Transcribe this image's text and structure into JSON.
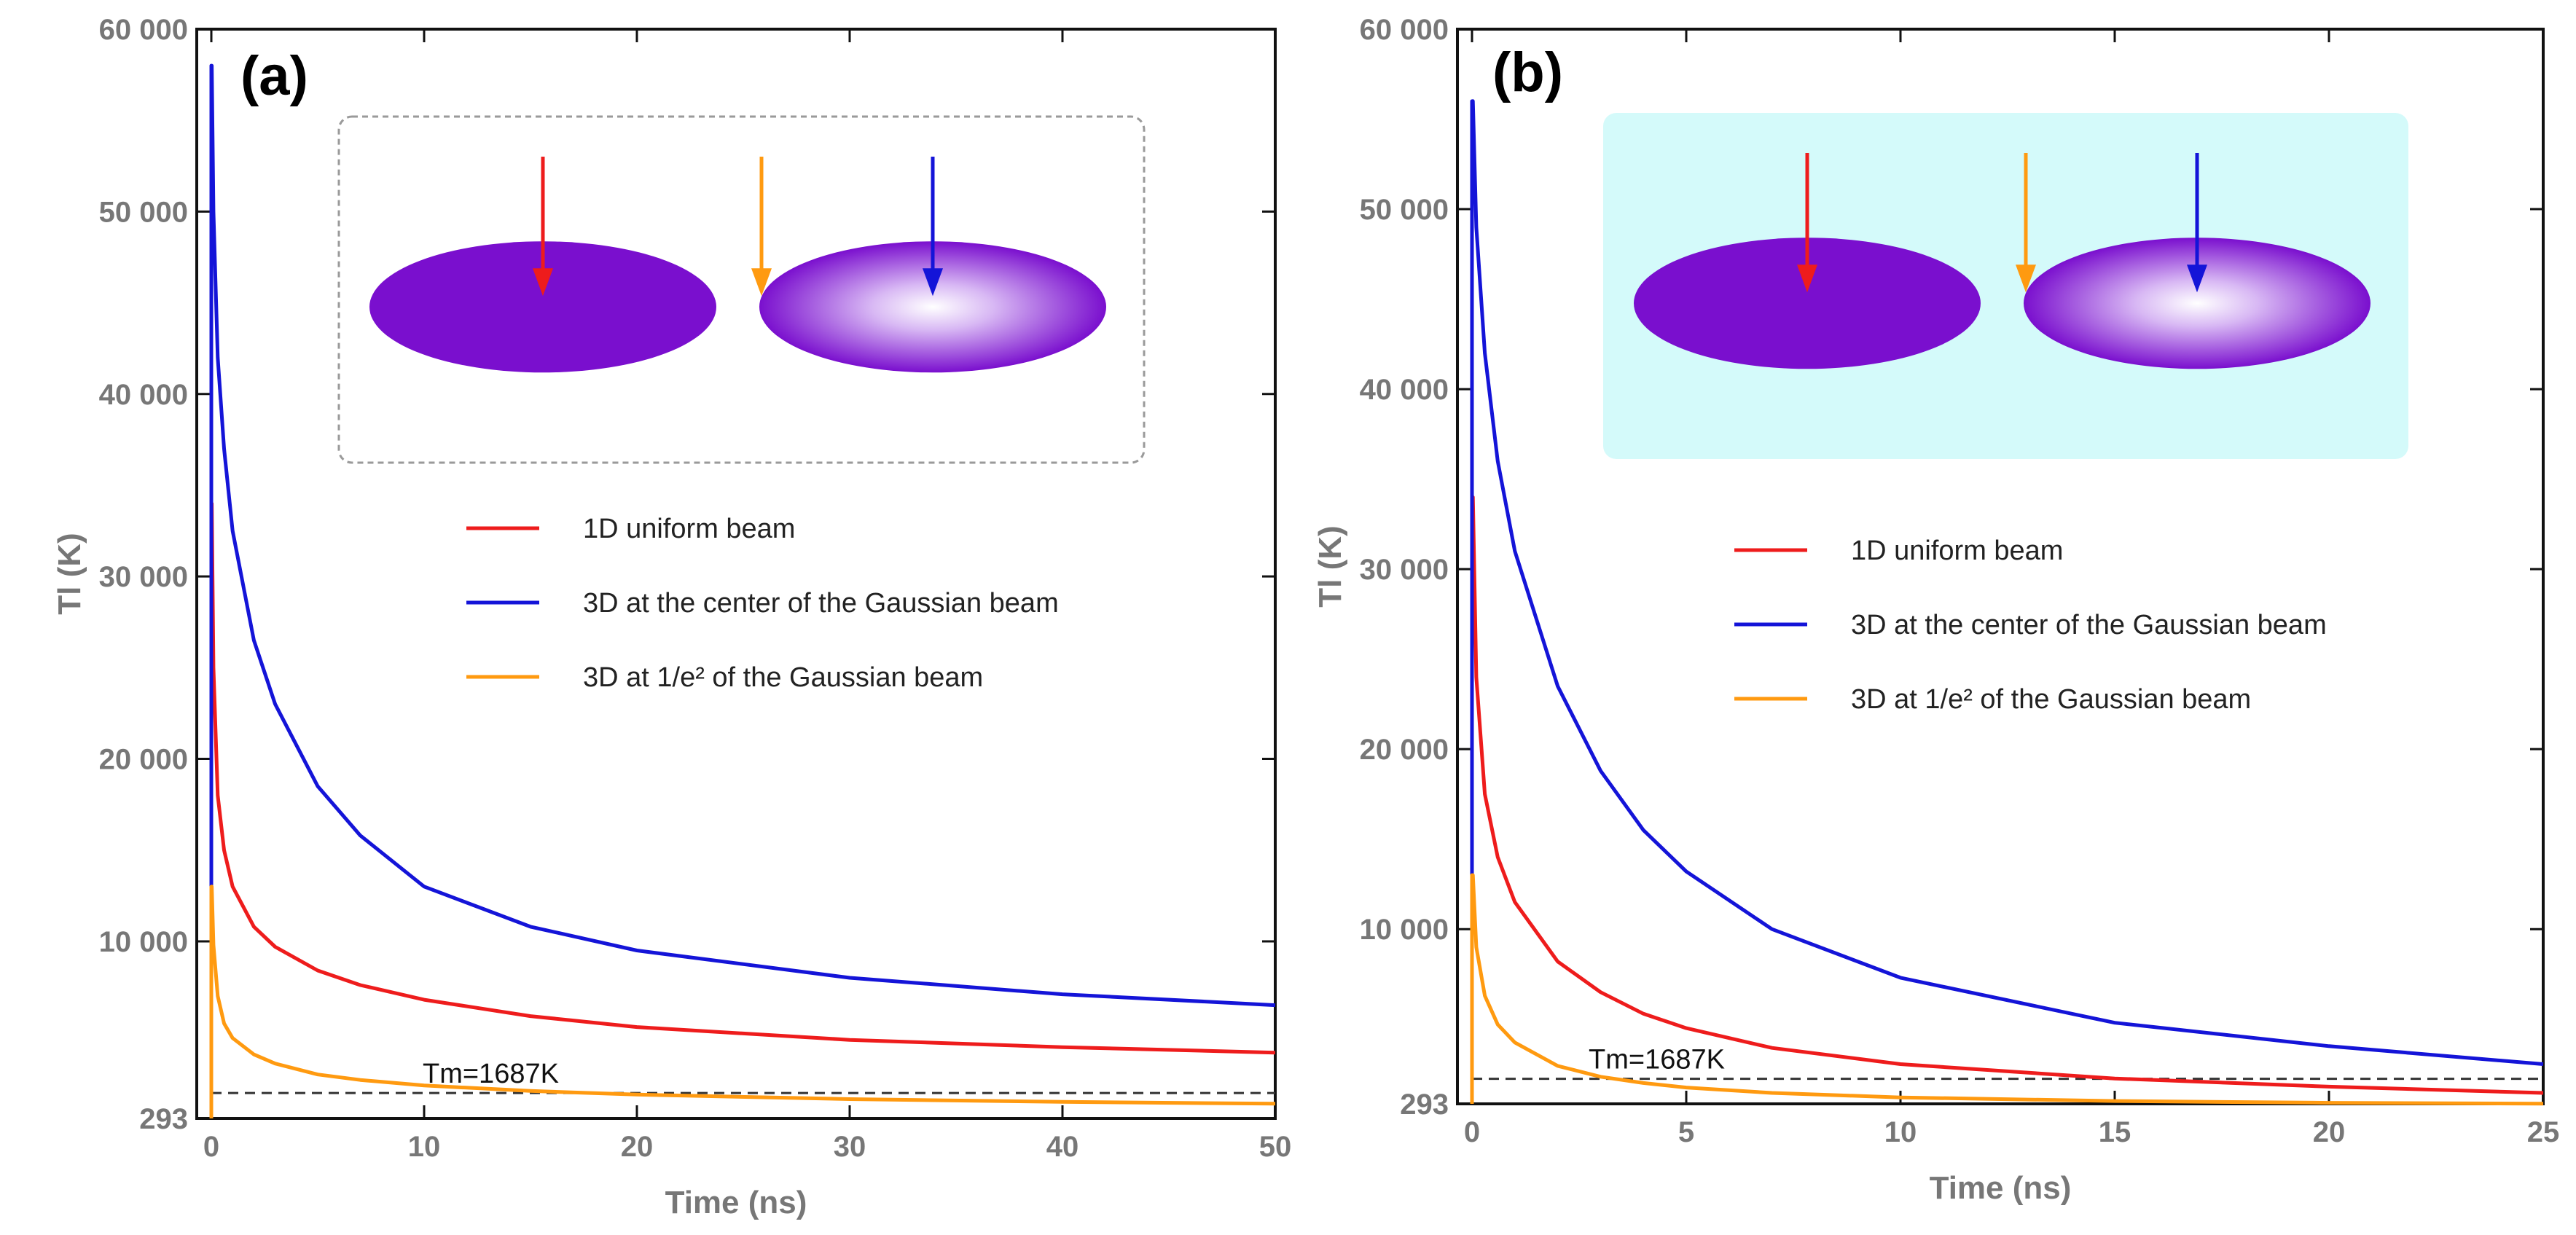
{
  "colors": {
    "red": "#ee1c1c",
    "blue": "#1414d8",
    "orange": "#ff9a10",
    "ellipse": "#7a0fce",
    "inset_b_bg": "#d4fafa"
  },
  "chart_data": [
    {
      "type": "line",
      "panel_label": "(a)",
      "xlabel": "Time (ns)",
      "ylabel": "Tl (K)",
      "xlim": [
        0,
        50
      ],
      "ylim": [
        293,
        60000
      ],
      "xticks": [
        0,
        10,
        20,
        30,
        40,
        50
      ],
      "xtick_labels": [
        "0",
        "10",
        "20",
        "30",
        "40",
        "50"
      ],
      "yticks": [
        293,
        10000,
        20000,
        30000,
        40000,
        50000,
        60000
      ],
      "ytick_labels": [
        "293",
        "10 000",
        "20 000",
        "30 000",
        "40 000",
        "50 000",
        "60 000"
      ],
      "grid": false,
      "legend_position": "center-right",
      "inset": {
        "style": "dashed-border",
        "description_icons": [
          "red-arrow",
          "orange-arrow",
          "blue-arrow"
        ]
      },
      "annotation": {
        "text": "Tm=1687K",
        "y": 1687
      },
      "series": [
        {
          "name": "1D uniform beam",
          "color": "#ee1c1c",
          "x": [
            0.02,
            0.1,
            0.3,
            0.6,
            1,
            2,
            3,
            5,
            7,
            10,
            15,
            20,
            30,
            40,
            50
          ],
          "y": [
            34000,
            25000,
            18000,
            15000,
            13000,
            10800,
            9700,
            8400,
            7600,
            6800,
            5900,
            5300,
            4600,
            4200,
            3900
          ]
        },
        {
          "name": "3D at the center of the Gaussian beam",
          "color": "#1414d8",
          "x": [
            0.02,
            0.1,
            0.3,
            0.6,
            1,
            2,
            3,
            5,
            7,
            10,
            15,
            20,
            30,
            40,
            50
          ],
          "y": [
            58000,
            50000,
            42000,
            37000,
            32500,
            26500,
            23000,
            18500,
            15800,
            13000,
            10800,
            9500,
            8000,
            7100,
            6500
          ]
        },
        {
          "name": "3D at 1/e² of the Gaussian beam",
          "color": "#ff9a10",
          "x": [
            0.02,
            0.1,
            0.3,
            0.6,
            1,
            2,
            3,
            5,
            7,
            10,
            15,
            20,
            30,
            40,
            50
          ],
          "y": [
            13000,
            9800,
            7000,
            5500,
            4700,
            3800,
            3300,
            2700,
            2400,
            2100,
            1800,
            1600,
            1350,
            1200,
            1100
          ]
        }
      ]
    },
    {
      "type": "line",
      "panel_label": "(b)",
      "xlabel": "Time (ns)",
      "ylabel": "Tl (K)",
      "xlim": [
        0,
        25
      ],
      "ylim": [
        293,
        60000
      ],
      "xticks": [
        0,
        5,
        10,
        15,
        20,
        25
      ],
      "xtick_labels": [
        "0",
        "5",
        "10",
        "15",
        "20",
        "25"
      ],
      "yticks": [
        293,
        10000,
        20000,
        30000,
        40000,
        50000,
        60000
      ],
      "ytick_labels": [
        "293",
        "10 000",
        "20 000",
        "30 000",
        "40 000",
        "50 000",
        "60 000"
      ],
      "grid": false,
      "legend_position": "center-right",
      "inset": {
        "style": "cyan-filled",
        "description_icons": [
          "red-arrow",
          "orange-arrow",
          "blue-arrow"
        ]
      },
      "annotation": {
        "text": "Tm=1687K",
        "y": 1687
      },
      "series": [
        {
          "name": "1D uniform beam",
          "color": "#ee1c1c",
          "x": [
            0.02,
            0.1,
            0.3,
            0.6,
            1,
            2,
            3,
            4,
            5,
            7,
            10,
            15,
            20,
            25
          ],
          "y": [
            34000,
            24000,
            17500,
            14000,
            11500,
            8200,
            6500,
            5300,
            4500,
            3400,
            2500,
            1700,
            1250,
            900
          ]
        },
        {
          "name": "3D at the center of the Gaussian beam",
          "color": "#1414d8",
          "x": [
            0.02,
            0.1,
            0.3,
            0.6,
            1,
            2,
            3,
            4,
            5,
            7,
            10,
            15,
            20,
            25
          ],
          "y": [
            56000,
            49000,
            42000,
            36000,
            31000,
            23500,
            18800,
            15500,
            13200,
            10000,
            7300,
            4800,
            3500,
            2500
          ]
        },
        {
          "name": "3D at 1/e² of the Gaussian beam",
          "color": "#ff9a10",
          "x": [
            0.02,
            0.1,
            0.3,
            0.6,
            1,
            2,
            3,
            4,
            5,
            7,
            10,
            15,
            20,
            25
          ],
          "y": [
            13000,
            9000,
            6300,
            4700,
            3700,
            2400,
            1800,
            1450,
            1200,
            900,
            650,
            450,
            350,
            300
          ]
        }
      ]
    }
  ]
}
